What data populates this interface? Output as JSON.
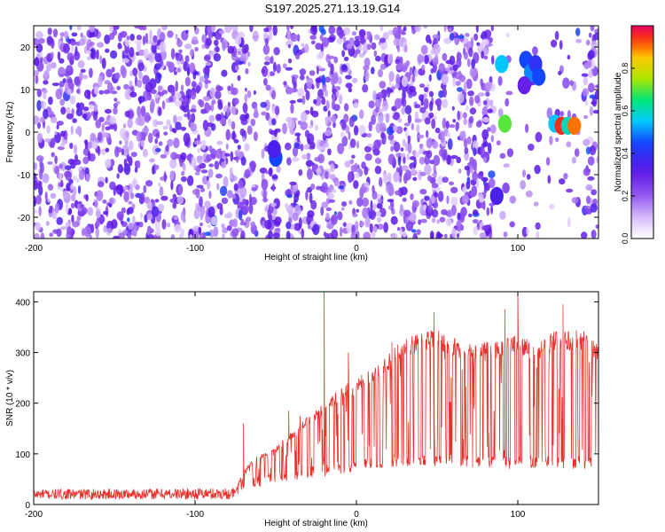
{
  "title": "S197.2025.271.13.19.G14",
  "colors": {
    "spectrum_base": "#7a2cff",
    "snr_line": "#e8302a",
    "frame": "#000000"
  },
  "chart_data": [
    {
      "type": "heatmap",
      "title": "S197.2025.271.13.19.G14",
      "xlabel": "Height of straight line (km)",
      "ylabel": "Frequency (Hz)",
      "xlim": [
        -200,
        150
      ],
      "ylim": [
        -25,
        25
      ],
      "xticks": [
        -200,
        -100,
        0,
        100
      ],
      "yticks": [
        -20,
        -10,
        0,
        10,
        20
      ],
      "colorbar": {
        "label": "Normalized spectral amplitude",
        "range": [
          0,
          1
        ],
        "ticks": [
          0,
          0.2,
          0.4,
          0.6,
          0.8
        ]
      },
      "background_noise_level": 0.3,
      "gaps_x": [
        [
          -62,
          -58
        ],
        [
          -48,
          -45
        ],
        [
          85,
          88
        ],
        [
          97,
          103
        ],
        [
          113,
          118
        ],
        [
          138,
          141
        ]
      ],
      "hotspots": [
        {
          "x": -50,
          "y": -6,
          "amp": 0.45
        },
        {
          "x": -51,
          "y": -4,
          "amp": 0.35
        },
        {
          "x": 90,
          "y": 16,
          "amp": 0.55
        },
        {
          "x": 92,
          "y": 2,
          "amp": 0.7
        },
        {
          "x": 105,
          "y": 17,
          "amp": 0.45
        },
        {
          "x": 108,
          "y": 14,
          "amp": 0.5
        },
        {
          "x": 111,
          "y": 16,
          "amp": 0.4
        },
        {
          "x": 113,
          "y": 13,
          "amp": 0.45
        },
        {
          "x": 123,
          "y": 2,
          "amp": 0.55
        },
        {
          "x": 127,
          "y": 1.5,
          "amp": 0.95
        },
        {
          "x": 131,
          "y": 1.5,
          "amp": 0.6
        },
        {
          "x": 135,
          "y": 1.5,
          "amp": 0.9
        },
        {
          "x": 104,
          "y": 11,
          "amp": 0.3
        },
        {
          "x": 87,
          "y": -15,
          "amp": 0.35
        }
      ]
    },
    {
      "type": "line",
      "xlabel": "Height of straight line (km)",
      "ylabel": "SNR (10 * v/v)",
      "xlim": [
        -200,
        150
      ],
      "ylim": [
        0,
        420
      ],
      "xticks": [
        -200,
        -100,
        0,
        100
      ],
      "yticks": [
        0,
        100,
        200,
        300,
        400
      ],
      "profile_upper": [
        [
          -200,
          25
        ],
        [
          -75,
          28
        ],
        [
          -70,
          70
        ],
        [
          -60,
          100
        ],
        [
          -50,
          115
        ],
        [
          -40,
          145
        ],
        [
          -30,
          175
        ],
        [
          -20,
          200
        ],
        [
          -10,
          230
        ],
        [
          0,
          250
        ],
        [
          10,
          270
        ],
        [
          20,
          300
        ],
        [
          30,
          330
        ],
        [
          40,
          340
        ],
        [
          50,
          345
        ],
        [
          60,
          330
        ],
        [
          70,
          320
        ],
        [
          80,
          320
        ],
        [
          90,
          330
        ],
        [
          100,
          340
        ],
        [
          110,
          320
        ],
        [
          120,
          340
        ],
        [
          130,
          345
        ],
        [
          140,
          345
        ],
        [
          150,
          320
        ]
      ],
      "profile_lower": [
        [
          -200,
          8
        ],
        [
          -75,
          12
        ],
        [
          -70,
          30
        ],
        [
          -60,
          35
        ],
        [
          -50,
          40
        ],
        [
          -40,
          45
        ],
        [
          -30,
          50
        ],
        [
          -20,
          55
        ],
        [
          -10,
          60
        ],
        [
          0,
          65
        ],
        [
          10,
          70
        ],
        [
          20,
          72
        ],
        [
          40,
          75
        ],
        [
          60,
          75
        ],
        [
          80,
          70
        ],
        [
          100,
          70
        ],
        [
          120,
          70
        ],
        [
          150,
          70
        ]
      ],
      "spikes": [
        [
          -20,
          420
        ],
        [
          100,
          420
        ],
        [
          -70,
          160
        ],
        [
          -42,
          185
        ],
        [
          -35,
          175
        ],
        [
          -5,
          300
        ],
        [
          22,
          320
        ],
        [
          48,
          380
        ],
        [
          92,
          385
        ],
        [
          128,
          395
        ]
      ]
    }
  ]
}
